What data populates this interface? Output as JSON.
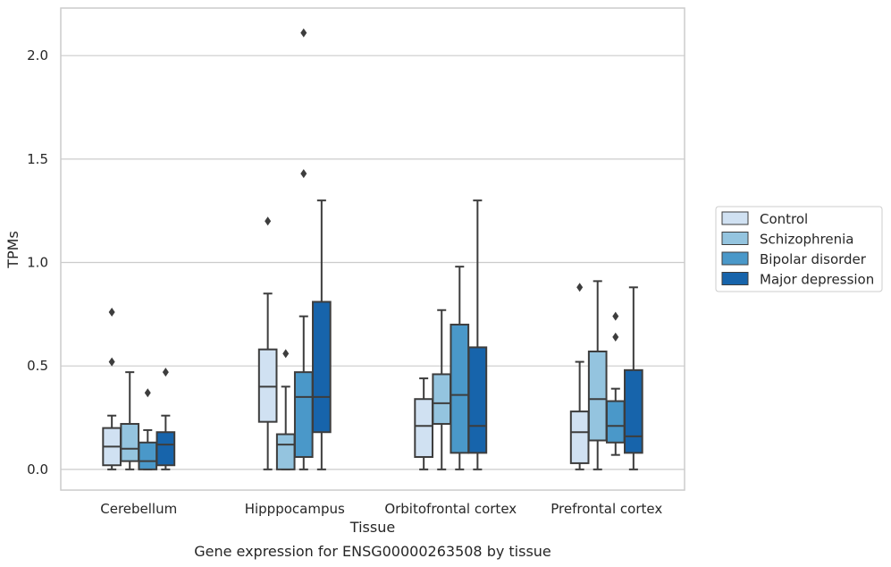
{
  "caption": "Gene expression for ENSG00000263508 by tissue",
  "chart_data": {
    "type": "box",
    "title": "",
    "xlabel": "Tissue",
    "ylabel": "TPMs",
    "ylim": [
      -0.1,
      2.23
    ],
    "yticks": [
      "0.0",
      "0.5",
      "1.0",
      "1.5",
      "2.0"
    ],
    "grid": "horizontal",
    "legend_position": "right",
    "categories": [
      "Cerebellum",
      "Hipppocampus",
      "Orbitofrontal cortex",
      "Prefrontal cortex"
    ],
    "series": [
      {
        "name": "Control",
        "color": "#d0e1f2",
        "boxes": [
          {
            "whislo": 0.0,
            "q1": 0.02,
            "med": 0.11,
            "q3": 0.2,
            "whishi": 0.26,
            "fliers": [
              0.52,
              0.76
            ]
          },
          {
            "whislo": 0.0,
            "q1": 0.23,
            "med": 0.4,
            "q3": 0.58,
            "whishi": 0.85,
            "fliers": [
              1.2
            ]
          },
          {
            "whislo": 0.0,
            "q1": 0.06,
            "med": 0.21,
            "q3": 0.34,
            "whishi": 0.44,
            "fliers": []
          },
          {
            "whislo": 0.0,
            "q1": 0.03,
            "med": 0.18,
            "q3": 0.28,
            "whishi": 0.52,
            "fliers": [
              0.88
            ]
          }
        ]
      },
      {
        "name": "Schizophrenia",
        "color": "#94c4df",
        "boxes": [
          {
            "whislo": 0.0,
            "q1": 0.04,
            "med": 0.1,
            "q3": 0.22,
            "whishi": 0.47,
            "fliers": []
          },
          {
            "whislo": 0.0,
            "q1": 0.0,
            "med": 0.12,
            "q3": 0.17,
            "whishi": 0.4,
            "fliers": [
              0.56
            ]
          },
          {
            "whislo": 0.0,
            "q1": 0.22,
            "med": 0.32,
            "q3": 0.46,
            "whishi": 0.77,
            "fliers": []
          },
          {
            "whislo": 0.0,
            "q1": 0.14,
            "med": 0.34,
            "q3": 0.57,
            "whishi": 0.91,
            "fliers": []
          }
        ]
      },
      {
        "name": "Bipolar disorder",
        "color": "#4a98c9",
        "boxes": [
          {
            "whislo": 0.0,
            "q1": 0.0,
            "med": 0.04,
            "q3": 0.13,
            "whishi": 0.19,
            "fliers": [
              0.37
            ]
          },
          {
            "whislo": 0.0,
            "q1": 0.06,
            "med": 0.35,
            "q3": 0.47,
            "whishi": 0.74,
            "fliers": [
              1.43,
              2.11
            ]
          },
          {
            "whislo": 0.0,
            "q1": 0.08,
            "med": 0.36,
            "q3": 0.7,
            "whishi": 0.98,
            "fliers": []
          },
          {
            "whislo": 0.07,
            "q1": 0.13,
            "med": 0.21,
            "q3": 0.33,
            "whishi": 0.39,
            "fliers": [
              0.64,
              0.74
            ]
          }
        ]
      },
      {
        "name": "Major depression",
        "color": "#1764ab",
        "boxes": [
          {
            "whislo": 0.0,
            "q1": 0.02,
            "med": 0.12,
            "q3": 0.18,
            "whishi": 0.26,
            "fliers": [
              0.47
            ]
          },
          {
            "whislo": 0.0,
            "q1": 0.18,
            "med": 0.35,
            "q3": 0.81,
            "whishi": 1.3,
            "fliers": []
          },
          {
            "whislo": 0.0,
            "q1": 0.08,
            "med": 0.21,
            "q3": 0.59,
            "whishi": 1.3,
            "fliers": []
          },
          {
            "whislo": 0.0,
            "q1": 0.08,
            "med": 0.16,
            "q3": 0.48,
            "whishi": 0.88,
            "fliers": []
          }
        ]
      }
    ]
  }
}
